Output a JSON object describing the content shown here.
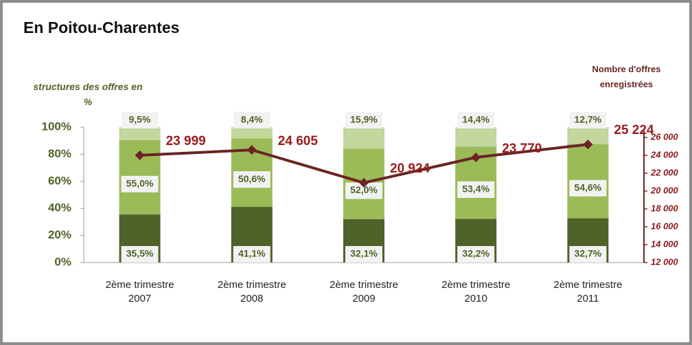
{
  "chart_data": {
    "type": "bar",
    "stacked": true,
    "title": "En Poitou-Charentes",
    "ylabel": "structures des offres en\n%",
    "y2label": "Nombre d'offres\nenregistrées",
    "categories": [
      "2ème trimestre\n2007",
      "2ème trimestre\n2008",
      "2ème  trimestre\n2009",
      "2ème trimestre\n2010",
      "2ème  trimestre\n2011"
    ],
    "ylim": [
      0,
      100
    ],
    "yticks": [
      {
        "value": 0,
        "label": "0%"
      },
      {
        "value": 20,
        "label": "20%"
      },
      {
        "value": 40,
        "label": "40%"
      },
      {
        "value": 60,
        "label": "60%"
      },
      {
        "value": 80,
        "label": "80%"
      },
      {
        "value": 100,
        "label": "100%"
      }
    ],
    "y2lim": [
      12000,
      26000
    ],
    "y2ticks": [
      {
        "value": 12000,
        "label": "12 000"
      },
      {
        "value": 14000,
        "label": "14 000"
      },
      {
        "value": 16000,
        "label": "16 000"
      },
      {
        "value": 18000,
        "label": "18 000"
      },
      {
        "value": 20000,
        "label": "20 000"
      },
      {
        "value": 22000,
        "label": "22 000"
      },
      {
        "value": 24000,
        "label": "24 000"
      },
      {
        "value": 26000,
        "label": "26 000"
      }
    ],
    "series": [
      {
        "color": "#4f6228",
        "values": [
          35.5,
          41.1,
          32.1,
          32.2,
          32.7
        ],
        "value_labels": [
          "35,5%",
          "41,1%",
          "32,1%",
          "32,2%",
          "32,7%"
        ]
      },
      {
        "color": "#9bbb59",
        "values": [
          55.0,
          50.6,
          52.0,
          53.4,
          54.6
        ],
        "value_labels": [
          "55,0%",
          "50,6%",
          "52,0%",
          "53,4%",
          "54,6%"
        ]
      },
      {
        "color": "#c3d69b",
        "values": [
          9.5,
          8.4,
          15.9,
          14.4,
          12.7
        ],
        "value_labels": [
          "9,5%",
          "8,4%",
          "15,9%",
          "14,4%",
          "12,7%"
        ]
      },
      {
        "type": "line",
        "axis": "y2",
        "color": "#6b2424",
        "values": [
          23999,
          24605,
          20924,
          23770,
          25224
        ],
        "value_labels": [
          "23 999",
          "24 605",
          "20 924",
          "23 770",
          "25 224"
        ]
      }
    ],
    "grid": false
  }
}
